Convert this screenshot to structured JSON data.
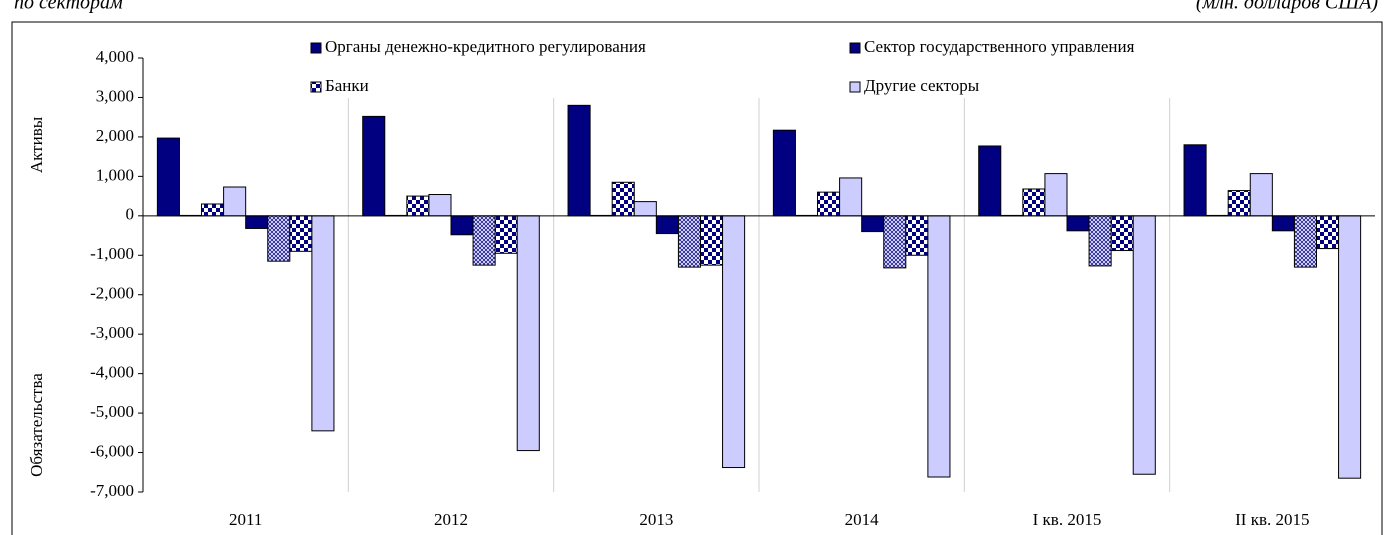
{
  "chart_data": {
    "type": "bar",
    "subtitle": "по секторам",
    "units": "(млн. долларов США)",
    "y_label_top": "Активы",
    "y_label_bottom": "Обязательства",
    "categories": [
      "2011",
      "2012",
      "2013",
      "2014",
      "I кв. 2015",
      "II кв. 2015"
    ],
    "series": [
      {
        "name": "Органы денежно-кредитного регулирования",
        "color": "#000080",
        "pattern": "solid",
        "liabilities_pattern": "solid",
        "values": [
          1970,
          2520,
          2800,
          2170,
          1770,
          1800
        ],
        "liabilities": [
          -320,
          -480,
          -450,
          -400,
          -380,
          -380
        ]
      },
      {
        "name": "Сектор государственного управления",
        "color": "#000080",
        "pattern": "solid",
        "liabilities_pattern": "crosshatch",
        "values": [
          10,
          10,
          10,
          10,
          10,
          10
        ],
        "liabilities": [
          -1150,
          -1250,
          -1300,
          -1320,
          -1270,
          -1300
        ]
      },
      {
        "name": "Банки",
        "color": "#000080",
        "pattern": "checker",
        "liabilities_pattern": "checker",
        "values": [
          300,
          500,
          850,
          600,
          680,
          640
        ],
        "liabilities": [
          -900,
          -950,
          -1250,
          -1000,
          -880,
          -830
        ]
      },
      {
        "name": "Другие секторы",
        "color": "#ccccff",
        "pattern": "solid",
        "liabilities_pattern": "solid",
        "values": [
          730,
          540,
          360,
          960,
          1070,
          1070
        ],
        "liabilities": [
          -5450,
          -5950,
          -6380,
          -6620,
          -6550,
          -6650
        ]
      }
    ],
    "ylim": [
      -7000,
      4000
    ],
    "yticks": [
      {
        "value": 4000,
        "label": "4,000"
      },
      {
        "value": 3000,
        "label": "3,000"
      },
      {
        "value": 2000,
        "label": "2,000"
      },
      {
        "value": 1000,
        "label": "1,000"
      },
      0,
      {
        "value": -1000,
        "label": "-1,000"
      },
      {
        "value": -2000,
        "label": "-2,000"
      },
      {
        "value": -3000,
        "label": "-3,000"
      },
      {
        "value": -4000,
        "label": "-4,000"
      },
      {
        "value": -5000,
        "label": "-5,000"
      },
      {
        "value": -6000,
        "label": "-6,000"
      },
      {
        "value": -7000,
        "label": "-7,000"
      }
    ],
    "grid": false,
    "category_separators": true
  }
}
